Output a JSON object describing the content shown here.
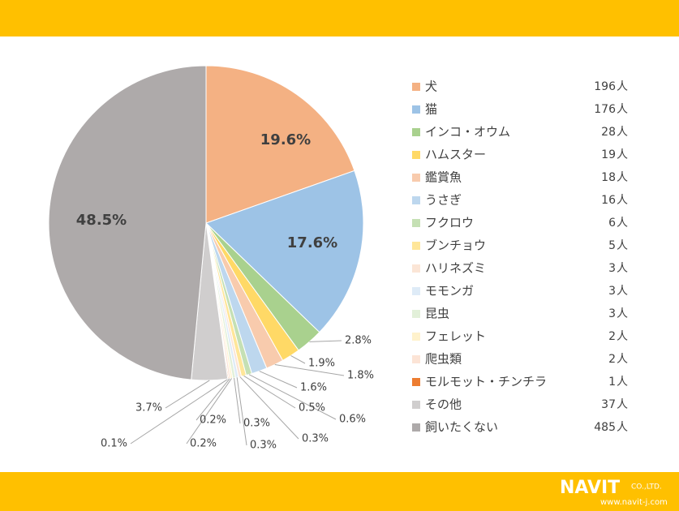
{
  "chart_data": {
    "type": "pie",
    "categories": [
      "犬",
      "猫",
      "インコ・オウム",
      "ハムスター",
      "鑑賞魚",
      "うさぎ",
      "フクロウ",
      "ブンチョウ",
      "ハリネズミ",
      "モモンガ",
      "昆虫",
      "フェレット",
      "爬虫類",
      "モルモット・チンチラ",
      "その他",
      "飼いたくない"
    ],
    "values": [
      19.6,
      17.6,
      2.8,
      1.9,
      1.8,
      1.6,
      0.6,
      0.5,
      0.3,
      0.3,
      0.3,
      0.2,
      0.2,
      0.1,
      3.7,
      48.5
    ],
    "value_labels": [
      "19.6%",
      "17.6%",
      "2.8%",
      "1.9%",
      "1.8%",
      "1.6%",
      "0.6%",
      "0.5%",
      "0.3%",
      "0.3%",
      "0.3%",
      "0.2%",
      "0.2%",
      "0.1%",
      "3.7%",
      "48.5%"
    ],
    "counts": [
      196,
      176,
      28,
      19,
      18,
      16,
      6,
      5,
      3,
      3,
      3,
      2,
      2,
      1,
      37,
      485
    ],
    "count_unit": "人",
    "colors": [
      "#f4b183",
      "#9dc3e6",
      "#a9d18e",
      "#ffd966",
      "#f8cbad",
      "#bdd7ee",
      "#c5e0b4",
      "#ffe699",
      "#fbe5d6",
      "#deebf7",
      "#e2f0d9",
      "#fff2cc",
      "#fce4d6",
      "#ed7d31",
      "#d0cece",
      "#aeaaaa"
    ],
    "legend": "right"
  },
  "footer": {
    "logo": "NAVIT",
    "company": "CO.,LTD.",
    "url": "www.navit-j.com"
  }
}
